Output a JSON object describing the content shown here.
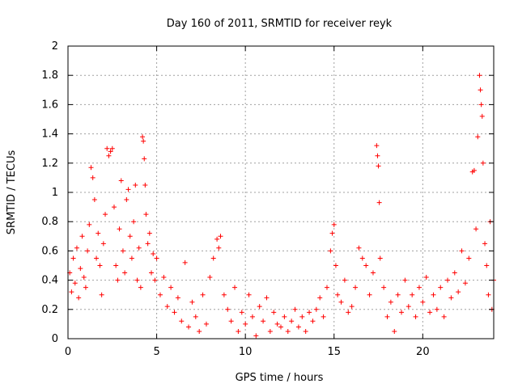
{
  "chart_data": {
    "type": "scatter",
    "title": "Day 160 of 2011, SRMTID for receiver reyk",
    "xlabel": "GPS time / hours",
    "ylabel": "SRMTID / TECUs",
    "xlim": [
      0,
      24
    ],
    "ylim": [
      0,
      2
    ],
    "xticks": [
      0,
      5,
      10,
      15,
      20
    ],
    "xtick_labels": [
      "0",
      "5",
      "10",
      "15",
      "20"
    ],
    "yticks": [
      0,
      0.2,
      0.4,
      0.6,
      0.8,
      1,
      1.2,
      1.4,
      1.6,
      1.8,
      2
    ],
    "ytick_labels": [
      "0",
      "0.2",
      "0.4",
      "0.6",
      "0.8",
      "1",
      "1.2",
      "1.4",
      "1.6",
      "1.8",
      "2"
    ],
    "grid": true,
    "marker": "+",
    "colors": {
      "points": "#ff0000",
      "grid": "#a0a0a0",
      "axes": "#000000"
    },
    "series": [
      {
        "values": [
          [
            0.1,
            0.45
          ],
          [
            0.2,
            0.32
          ],
          [
            0.3,
            0.55
          ],
          [
            0.4,
            0.38
          ],
          [
            0.5,
            0.62
          ],
          [
            0.6,
            0.28
          ],
          [
            0.7,
            0.48
          ],
          [
            0.8,
            0.7
          ],
          [
            0.9,
            0.42
          ],
          [
            1.0,
            0.35
          ],
          [
            1.1,
            0.6
          ],
          [
            1.2,
            0.78
          ],
          [
            1.3,
            1.17
          ],
          [
            1.4,
            1.1
          ],
          [
            1.5,
            0.95
          ],
          [
            1.6,
            0.55
          ],
          [
            1.7,
            0.72
          ],
          [
            1.8,
            0.5
          ],
          [
            1.9,
            0.3
          ],
          [
            2.0,
            0.65
          ],
          [
            2.1,
            0.85
          ],
          [
            2.2,
            1.3
          ],
          [
            2.3,
            1.25
          ],
          [
            2.4,
            1.28
          ],
          [
            2.5,
            1.3
          ],
          [
            2.6,
            0.9
          ],
          [
            2.7,
            0.5
          ],
          [
            2.8,
            0.4
          ],
          [
            2.9,
            0.75
          ],
          [
            3.0,
            1.08
          ],
          [
            3.1,
            0.6
          ],
          [
            3.2,
            0.45
          ],
          [
            3.3,
            0.95
          ],
          [
            3.4,
            1.02
          ],
          [
            3.5,
            0.7
          ],
          [
            3.6,
            0.55
          ],
          [
            3.7,
            0.8
          ],
          [
            3.8,
            1.05
          ],
          [
            3.9,
            0.4
          ],
          [
            4.0,
            0.62
          ],
          [
            4.1,
            0.35
          ],
          [
            4.2,
            1.38
          ],
          [
            4.25,
            1.35
          ],
          [
            4.3,
            1.23
          ],
          [
            4.35,
            1.05
          ],
          [
            4.4,
            0.85
          ],
          [
            4.5,
            0.65
          ],
          [
            4.6,
            0.72
          ],
          [
            4.7,
            0.45
          ],
          [
            4.8,
            0.58
          ],
          [
            4.9,
            0.4
          ],
          [
            5.0,
            0.55
          ],
          [
            5.2,
            0.3
          ],
          [
            5.4,
            0.42
          ],
          [
            5.6,
            0.22
          ],
          [
            5.8,
            0.35
          ],
          [
            6.0,
            0.18
          ],
          [
            6.2,
            0.28
          ],
          [
            6.4,
            0.12
          ],
          [
            6.6,
            0.52
          ],
          [
            6.8,
            0.08
          ],
          [
            7.0,
            0.25
          ],
          [
            7.2,
            0.15
          ],
          [
            7.4,
            0.05
          ],
          [
            7.6,
            0.3
          ],
          [
            7.8,
            0.1
          ],
          [
            8.0,
            0.42
          ],
          [
            8.2,
            0.55
          ],
          [
            8.4,
            0.68
          ],
          [
            8.5,
            0.62
          ],
          [
            8.6,
            0.7
          ],
          [
            8.8,
            0.3
          ],
          [
            9.0,
            0.2
          ],
          [
            9.2,
            0.12
          ],
          [
            9.4,
            0.35
          ],
          [
            9.6,
            0.05
          ],
          [
            9.8,
            0.18
          ],
          [
            10.0,
            0.1
          ],
          [
            10.2,
            0.3
          ],
          [
            10.4,
            0.15
          ],
          [
            10.6,
            0.02
          ],
          [
            10.8,
            0.22
          ],
          [
            11.0,
            0.12
          ],
          [
            11.2,
            0.28
          ],
          [
            11.4,
            0.05
          ],
          [
            11.6,
            0.18
          ],
          [
            11.8,
            0.1
          ],
          [
            12.0,
            0.08
          ],
          [
            12.2,
            0.15
          ],
          [
            12.4,
            0.05
          ],
          [
            12.6,
            0.12
          ],
          [
            12.8,
            0.2
          ],
          [
            13.0,
            0.08
          ],
          [
            13.2,
            0.15
          ],
          [
            13.4,
            0.05
          ],
          [
            13.6,
            0.18
          ],
          [
            13.8,
            0.12
          ],
          [
            14.0,
            0.2
          ],
          [
            14.2,
            0.28
          ],
          [
            14.4,
            0.15
          ],
          [
            14.6,
            0.35
          ],
          [
            14.8,
            0.6
          ],
          [
            14.9,
            0.72
          ],
          [
            15.0,
            0.78
          ],
          [
            15.1,
            0.5
          ],
          [
            15.2,
            0.3
          ],
          [
            15.4,
            0.25
          ],
          [
            15.6,
            0.4
          ],
          [
            15.8,
            0.18
          ],
          [
            16.0,
            0.22
          ],
          [
            16.2,
            0.35
          ],
          [
            16.4,
            0.62
          ],
          [
            16.6,
            0.55
          ],
          [
            16.8,
            0.5
          ],
          [
            17.0,
            0.3
          ],
          [
            17.2,
            0.45
          ],
          [
            17.4,
            1.32
          ],
          [
            17.45,
            1.25
          ],
          [
            17.5,
            1.18
          ],
          [
            17.55,
            0.93
          ],
          [
            17.6,
            0.55
          ],
          [
            17.8,
            0.35
          ],
          [
            18.0,
            0.15
          ],
          [
            18.2,
            0.25
          ],
          [
            18.4,
            0.05
          ],
          [
            18.6,
            0.3
          ],
          [
            18.8,
            0.18
          ],
          [
            19.0,
            0.4
          ],
          [
            19.2,
            0.22
          ],
          [
            19.4,
            0.3
          ],
          [
            19.6,
            0.15
          ],
          [
            19.8,
            0.35
          ],
          [
            20.0,
            0.25
          ],
          [
            20.2,
            0.42
          ],
          [
            20.4,
            0.18
          ],
          [
            20.6,
            0.3
          ],
          [
            20.8,
            0.2
          ],
          [
            21.0,
            0.35
          ],
          [
            21.2,
            0.15
          ],
          [
            21.4,
            0.4
          ],
          [
            21.6,
            0.28
          ],
          [
            21.8,
            0.45
          ],
          [
            22.0,
            0.32
          ],
          [
            22.2,
            0.6
          ],
          [
            22.4,
            0.38
          ],
          [
            22.6,
            0.55
          ],
          [
            22.8,
            1.14
          ],
          [
            22.9,
            1.15
          ],
          [
            23.0,
            0.75
          ],
          [
            23.1,
            1.38
          ],
          [
            23.2,
            1.8
          ],
          [
            23.25,
            1.7
          ],
          [
            23.3,
            1.6
          ],
          [
            23.35,
            1.52
          ],
          [
            23.4,
            1.2
          ],
          [
            23.5,
            0.65
          ],
          [
            23.6,
            0.5
          ],
          [
            23.7,
            0.3
          ],
          [
            23.8,
            0.8
          ],
          [
            23.9,
            0.2
          ],
          [
            24.0,
            0.4
          ]
        ]
      }
    ]
  }
}
